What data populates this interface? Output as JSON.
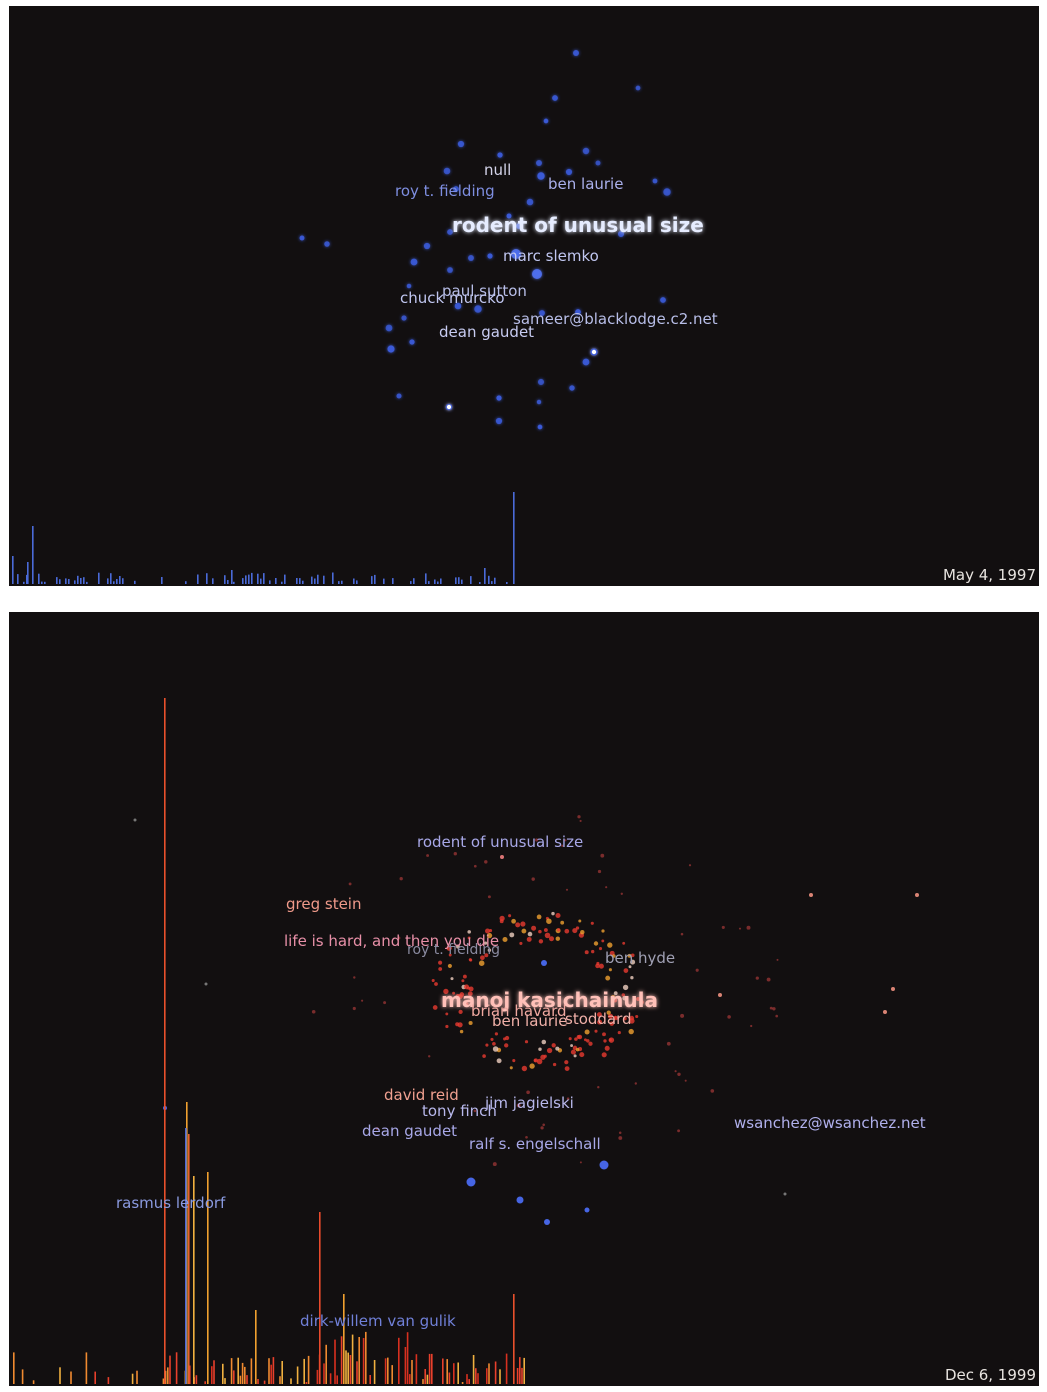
{
  "panels": [
    {
      "date": "May 4, 1997",
      "labels": [
        {
          "text": "null",
          "tone": "white"
        },
        {
          "text": "roy t. fielding",
          "tone": "blue"
        },
        {
          "text": "ben laurie",
          "tone": "lavender"
        },
        {
          "text": "rodent of unusual size",
          "tone": "bright"
        },
        {
          "text": "marc slemko",
          "tone": "lavender"
        },
        {
          "text": "paul sutton",
          "tone": "lavender"
        },
        {
          "text": "chuck murcko",
          "tone": "lavender"
        },
        {
          "text": "sameer@blacklodge.c2.net",
          "tone": "lavender"
        },
        {
          "text": "dean gaudet",
          "tone": "lavender"
        }
      ]
    },
    {
      "date": "Dec 6, 1999",
      "labels": [
        {
          "text": "rodent of unusual size",
          "tone": "lavender"
        },
        {
          "text": "greg stein",
          "tone": "salmon"
        },
        {
          "text": "life is hard, and then you die",
          "tone": "pink"
        },
        {
          "text": "roy t. fielding",
          "tone": "grey"
        },
        {
          "text": "ben hyde",
          "tone": "grey"
        },
        {
          "text": "manoj kasichainula",
          "tone": "hot"
        },
        {
          "text": "brian havard",
          "tone": "salmon"
        },
        {
          "text": "ben laurie",
          "tone": "salmon"
        },
        {
          "text": "stoddard",
          "tone": "salmon"
        },
        {
          "text": "david reid",
          "tone": "salmon"
        },
        {
          "text": "tony finch",
          "tone": "lavender"
        },
        {
          "text": "jim jagielski",
          "tone": "lavender"
        },
        {
          "text": "dean gaudet",
          "tone": "lavender"
        },
        {
          "text": "ralf  s.  engelschall",
          "tone": "lavender"
        },
        {
          "text": "wsanchez@wsanchez.net",
          "tone": "lavender"
        },
        {
          "text": "rasmus lerdorf",
          "tone": "blue"
        },
        {
          "text": "dirk-willem van gulik",
          "tone": "blue"
        }
      ]
    }
  ],
  "colors": {
    "background": "#120f10",
    "blue_node": "#3a5ad8",
    "red_node": "#e83a30",
    "orange_node": "#f0a030",
    "white_node": "#ffffff"
  }
}
